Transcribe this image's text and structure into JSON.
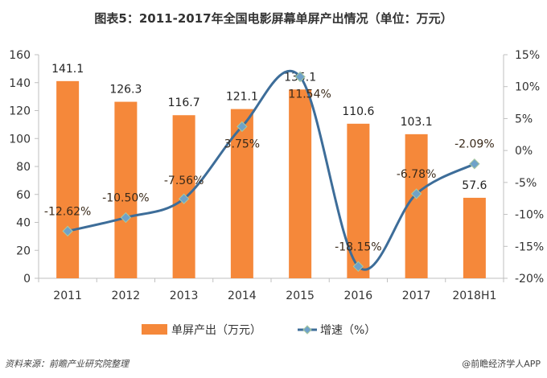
{
  "title": "图表5：2011-2017年全国电影屏幕单屏产出情况（单位：万元）",
  "source": "资料来源：前瞻产业研究院整理",
  "credit": "@前瞻经济学人APP",
  "colors": {
    "bar": "#F5883A",
    "line": "#3D6D99",
    "marker": "#6FA2C9",
    "marker_edge": "#A9C9A0",
    "axis": "#BFBFBF"
  },
  "chart_data": {
    "type": "bar+line",
    "title": "图表5：2011-2017年全国电影屏幕单屏产出情况（单位：万元）",
    "categories": [
      "2011",
      "2012",
      "2013",
      "2014",
      "2015",
      "2016",
      "2017",
      "2018H1"
    ],
    "series": [
      {
        "name": "单屏产出（万元）",
        "type": "bar",
        "axis": "left",
        "values": [
          141.1,
          126.3,
          116.7,
          121.1,
          135.1,
          110.6,
          103.1,
          57.6
        ],
        "labels": [
          "141.1",
          "126.3",
          "116.7",
          "121.1",
          "135.1",
          "110.6",
          "103.1",
          "57.6"
        ]
      },
      {
        "name": "增速（%）",
        "type": "line",
        "smooth": true,
        "axis": "right",
        "values": [
          -12.62,
          -10.5,
          -7.56,
          3.75,
          11.54,
          -18.15,
          -6.78,
          -2.09
        ],
        "labels": [
          "-12.62%",
          "-10.50%",
          "-7.56%",
          "3.75%",
          "11.54%",
          "-18.15%",
          "-6.78%",
          "-2.09%"
        ]
      }
    ],
    "y_left": {
      "min": 0,
      "max": 160,
      "ticks": [
        0,
        20,
        40,
        60,
        80,
        100,
        120,
        140,
        160
      ],
      "tick_labels": [
        "0",
        "20",
        "40",
        "60",
        "80",
        "100",
        "120",
        "140",
        "160"
      ]
    },
    "y_right": {
      "min": -20,
      "max": 15,
      "ticks": [
        -20,
        -15,
        -10,
        -5,
        0,
        5,
        10,
        15
      ],
      "tick_labels": [
        "-20%",
        "-15%",
        "-10%",
        "-5%",
        "0%",
        "5%",
        "10%",
        "15%"
      ]
    },
    "grid": false,
    "legend": {
      "position": "bottom",
      "entries": [
        "单屏产出（万元）",
        "增速（%）"
      ]
    }
  }
}
